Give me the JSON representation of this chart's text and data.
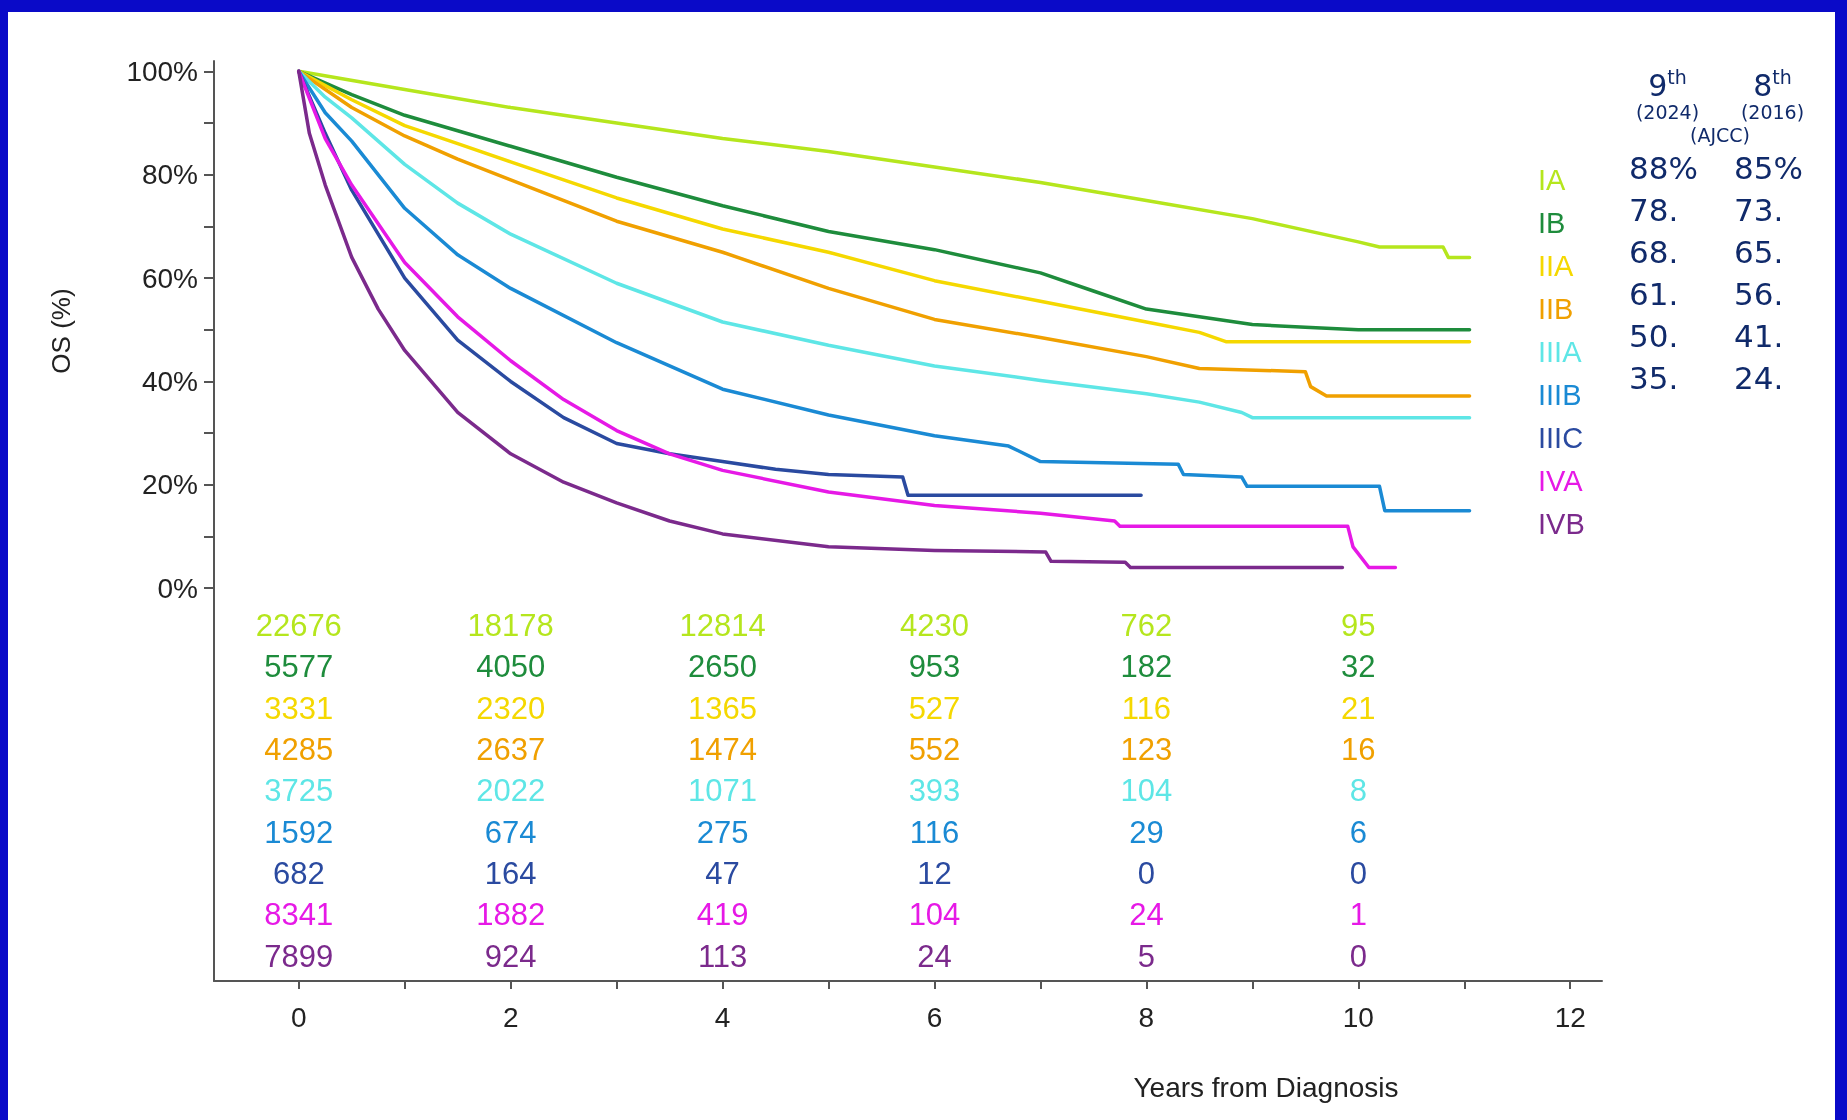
{
  "chart_data": [
    {
      "type": "line",
      "xlabel": "Years from Diagnosis",
      "ylabel": "OS (%)",
      "xlim": [
        -0.8,
        12.3
      ],
      "ylim": [
        -76,
        102
      ],
      "xticks": [
        0,
        {
          "value": 1,
          "label": null
        },
        2,
        {
          "value": 3,
          "label": null
        },
        4,
        {
          "value": 5,
          "label": null
        },
        6,
        {
          "value": 7,
          "label": null
        },
        8,
        {
          "value": 9,
          "label": null
        },
        10,
        {
          "value": 11,
          "label": null
        },
        12
      ],
      "yticks": [
        {
          "value": 0,
          "label": "0%"
        },
        {
          "value": 10,
          "label": null
        },
        {
          "value": 20,
          "label": "20%"
        },
        {
          "value": 30,
          "label": null
        },
        {
          "value": 40,
          "label": "40%"
        },
        {
          "value": 50,
          "label": null
        },
        {
          "value": 60,
          "label": "60%"
        },
        {
          "value": 70,
          "label": null
        },
        {
          "value": 80,
          "label": "80%"
        },
        {
          "value": 90,
          "label": null
        },
        {
          "value": 100,
          "label": "100%"
        }
      ],
      "grid": false,
      "legend": "right",
      "marker": "none",
      "line_style": "solid",
      "series": [
        {
          "name": "IA",
          "color": "#b5e61d",
          "x": [
            0,
            1,
            2,
            3,
            4,
            5,
            6,
            7,
            8,
            9,
            10,
            10.2,
            10.8,
            10.85,
            11.05
          ],
          "values": [
            100,
            96.5,
            93,
            90,
            87,
            84.5,
            81.5,
            78.5,
            75,
            71.5,
            67,
            66,
            66,
            64,
            64
          ]
        },
        {
          "name": "IB",
          "color": "#1e8c3c",
          "x": [
            0,
            0.5,
            1,
            1.5,
            2,
            3,
            4,
            5,
            6,
            7,
            7.5,
            8,
            8.5,
            9,
            9.5,
            10,
            11.05
          ],
          "values": [
            100,
            95.5,
            91.5,
            88.5,
            85.5,
            79.5,
            74,
            69,
            65.5,
            61,
            57.5,
            54,
            52.5,
            51,
            50.5,
            50,
            50
          ]
        },
        {
          "name": "IIA",
          "color": "#f5d800",
          "x": [
            0,
            0.5,
            1,
            1.5,
            2,
            3,
            4,
            5,
            6,
            7,
            8,
            8.5,
            8.75,
            11.05
          ],
          "values": [
            100,
            94.5,
            89.5,
            86,
            82.5,
            75.5,
            69.5,
            65,
            59.5,
            55.5,
            51.5,
            49.5,
            47.7,
            47.7
          ]
        },
        {
          "name": "IIB",
          "color": "#f0a000",
          "x": [
            0,
            0.5,
            1,
            1.5,
            2,
            3,
            4,
            5,
            6,
            7,
            8,
            8.5,
            9.5,
            9.55,
            9.7,
            11.05
          ],
          "values": [
            100,
            93,
            87.5,
            83,
            79,
            71,
            65,
            58,
            52,
            48.5,
            44.8,
            42.5,
            41.9,
            39,
            37.2,
            37.2
          ]
        },
        {
          "name": "IIIA",
          "color": "#5ee6e6",
          "x": [
            0,
            0.25,
            0.5,
            1,
            1.5,
            2,
            3,
            4,
            5,
            6,
            7,
            8,
            8.5,
            8.9,
            9,
            11.05
          ],
          "values": [
            100,
            95,
            91,
            82,
            74.5,
            68.5,
            59,
            51.5,
            47,
            43,
            40.2,
            37.6,
            36,
            34,
            33,
            33
          ]
        },
        {
          "name": "IIIB",
          "color": "#1a8ad4",
          "x": [
            0,
            0.25,
            0.5,
            1,
            1.5,
            2,
            3,
            4,
            5,
            6,
            6.7,
            7,
            8.3,
            8.35,
            8.9,
            8.95,
            10.2,
            10.25,
            11.05
          ],
          "values": [
            100,
            92,
            86.5,
            73.5,
            64.5,
            58,
            47.5,
            38.5,
            33.5,
            29.5,
            27.5,
            24.5,
            24,
            22,
            21.5,
            19.7,
            19.7,
            15,
            15
          ]
        },
        {
          "name": "IIIC",
          "color": "#2a4aa0",
          "x": [
            0,
            0.25,
            0.5,
            1,
            1.5,
            2,
            2.5,
            3,
            3.5,
            4,
            4.5,
            5,
            5.7,
            5.75,
            7.95
          ],
          "values": [
            100,
            88,
            77,
            60,
            48,
            40,
            33,
            28,
            26,
            24.5,
            23,
            22,
            21.5,
            18,
            18
          ]
        },
        {
          "name": "IVA",
          "color": "#e619e6",
          "x": [
            0,
            0.25,
            0.5,
            1,
            1.5,
            2,
            2.5,
            3,
            3.5,
            4,
            5,
            6,
            7,
            7.7,
            7.75,
            9.9,
            9.95,
            10.1,
            10.35
          ],
          "values": [
            100,
            87,
            78,
            63,
            52.5,
            44,
            36.5,
            30.5,
            26,
            22.8,
            18.6,
            16,
            14.5,
            13,
            12,
            12,
            8,
            4,
            4
          ]
        },
        {
          "name": "IVB",
          "color": "#7b2a8c",
          "x": [
            0,
            0.1,
            0.25,
            0.5,
            0.75,
            1,
            1.5,
            2,
            2.5,
            3,
            3.5,
            4,
            5,
            6,
            7.05,
            7.1,
            7.8,
            7.85,
            9.85
          ],
          "values": [
            100,
            88,
            78,
            64,
            54,
            46,
            34,
            26,
            20.5,
            16.5,
            13,
            10.5,
            8,
            7.3,
            7,
            5.2,
            5,
            4,
            4
          ]
        }
      ],
      "annotations": [
        "22676",
        "18178",
        "12814",
        "4230",
        "762",
        "95",
        "5577",
        "4050",
        "2650",
        "953",
        "182",
        "32",
        "3331",
        "2320",
        "1365",
        "527",
        "116",
        "21",
        "4285",
        "2637",
        "1474",
        "552",
        "123",
        "16",
        "3725",
        "2022",
        "1071",
        "393",
        "104",
        "8",
        "1592",
        "674",
        "275",
        "116",
        "29",
        "6",
        "682",
        "164",
        "47",
        "12",
        "0",
        "0",
        "8341",
        "1882",
        "419",
        "104",
        "24",
        "1",
        "7899",
        "924",
        "113",
        "24",
        "5",
        "0"
      ]
    },
    {
      "type": "other",
      "annotations": [
        "9$^{th}$",
        "8$^{th}$",
        "(2024)",
        "(2016)",
        "(AJCC)",
        "88%",
        "85%",
        "78.",
        "73.",
        "68.",
        "65.",
        "61.",
        "56.",
        "50.",
        "41.",
        "35.",
        "24."
      ]
    }
  ]
}
